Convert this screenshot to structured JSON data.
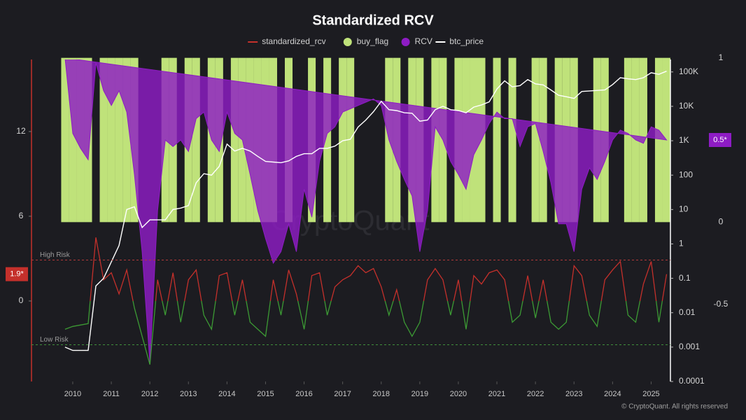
{
  "chart_data": {
    "type": "combo",
    "title": "Standardized RCV",
    "watermark": "CryptoQuant",
    "footer": "© CryptoQuant. All rights reserved",
    "x": [
      2009.8,
      2010,
      2010.2,
      2010.4,
      2010.6,
      2010.8,
      2011,
      2011.2,
      2011.4,
      2011.6,
      2011.8,
      2012,
      2012.2,
      2012.4,
      2012.6,
      2012.8,
      2013,
      2013.2,
      2013.4,
      2013.6,
      2013.8,
      2014,
      2014.2,
      2014.4,
      2014.6,
      2014.8,
      2015,
      2015.2,
      2015.4,
      2015.6,
      2015.8,
      2016,
      2016.2,
      2016.4,
      2016.6,
      2016.8,
      2017,
      2017.2,
      2017.4,
      2017.6,
      2017.8,
      2018,
      2018.2,
      2018.4,
      2018.6,
      2018.8,
      2019,
      2019.2,
      2019.4,
      2019.6,
      2019.8,
      2020,
      2020.2,
      2020.4,
      2020.6,
      2020.8,
      2021,
      2021.2,
      2021.4,
      2021.6,
      2021.8,
      2022,
      2022.2,
      2022.4,
      2022.6,
      2022.8,
      2023,
      2023.2,
      2023.4,
      2023.6,
      2023.8,
      2024,
      2024.2,
      2024.4,
      2024.6,
      2024.8,
      2025,
      2025.2,
      2025.4
    ],
    "xlim": [
      2008.93,
      2025.5
    ],
    "xticks": [
      2010,
      2011,
      2012,
      2013,
      2014,
      2015,
      2016,
      2017,
      2018,
      2019,
      2020,
      2021,
      2022,
      2023,
      2024,
      2025
    ],
    "ylim": [
      -5.7,
      17.1
    ],
    "yticks": [
      12,
      6,
      0
    ],
    "y2lim": [
      0.0001,
      230000
    ],
    "y2scale": "log",
    "y2ticks": [
      {
        "value": 100000,
        "label": "100K"
      },
      {
        "value": 10000,
        "label": "10K"
      },
      {
        "value": 1000,
        "label": "1K"
      },
      100,
      10,
      1,
      0.1,
      0.01,
      0.001,
      0.0001
    ],
    "y3lim": [
      -0.97,
      0.99
    ],
    "y3ticks": [
      1,
      0,
      -0.5
    ],
    "grid": false,
    "legend_position": "top",
    "reference_lines": [
      {
        "label": "High Risk",
        "value": 2.9,
        "color": "#b23a3a"
      },
      {
        "label": "Low Risk",
        "value": -3.1,
        "color": "#3f8f3a"
      }
    ],
    "series": [
      {
        "name": "standardized_rcv",
        "type": "line",
        "axis": "y",
        "color": "#c4302b",
        "color_below": "#3c9a34",
        "color_threshold": 0,
        "values": [
          -2,
          -1.8,
          -1.7,
          -1.6,
          4.5,
          1.5,
          2.0,
          0.5,
          2.2,
          -0.5,
          -2.5,
          -4.5,
          1.5,
          -1,
          2,
          -1.5,
          1.5,
          2.2,
          -1,
          -2,
          1.8,
          2,
          -1,
          1.5,
          -1.5,
          -2,
          -2.5,
          1.5,
          -1,
          2.2,
          0.5,
          -2,
          1.8,
          2.0,
          -1,
          1,
          1.5,
          1.8,
          2.5,
          2.0,
          2.3,
          1.0,
          -1,
          0.8,
          -1.5,
          -2.5,
          -1.5,
          1.5,
          2.3,
          1.5,
          -1,
          1.5,
          -2,
          1.8,
          1.2,
          2.0,
          2.2,
          1.5,
          -1.5,
          -1,
          1.8,
          -1.2,
          1.5,
          -1.5,
          -2,
          -1.5,
          2.5,
          1.8,
          -1,
          -1.8,
          1.5,
          2.2,
          2.8,
          -1,
          -1.5,
          1.2,
          2.8,
          -1.5,
          1.9
        ],
        "value_labels": [
          null,
          null,
          null,
          null,
          null,
          null,
          null,
          null,
          null,
          null,
          null,
          null,
          null,
          null,
          null,
          null,
          null,
          null,
          null,
          null,
          null,
          null,
          null,
          null,
          null,
          null,
          null,
          null,
          null,
          null,
          null,
          null,
          null,
          null,
          null,
          null,
          null,
          null,
          null,
          null,
          null,
          null,
          null,
          null,
          null,
          null,
          null,
          null,
          null,
          null,
          null,
          null,
          null,
          null,
          null,
          null,
          null,
          null,
          null,
          null,
          null,
          null,
          null,
          null,
          null,
          null,
          null,
          null,
          null,
          null,
          null,
          null,
          null,
          null,
          null,
          null,
          null,
          null,
          "1.9*"
        ]
      },
      {
        "name": "buy_flag",
        "type": "bar",
        "axis": "y3",
        "color": "#bfe27a",
        "values": [
          1,
          1,
          1,
          1,
          0,
          1,
          1,
          1,
          1,
          1,
          0,
          0,
          0,
          1,
          1,
          0,
          1,
          1,
          0,
          1,
          1,
          0,
          1,
          1,
          1,
          1,
          1,
          1,
          0,
          1,
          0,
          0,
          1,
          0,
          1,
          0,
          1,
          1,
          0,
          0,
          0,
          0,
          1,
          1,
          0,
          1,
          1,
          0,
          1,
          1,
          0,
          1,
          1,
          1,
          1,
          0,
          1,
          0,
          1,
          0,
          0,
          1,
          1,
          0,
          1,
          1,
          1,
          0,
          0,
          1,
          1,
          0,
          0,
          1,
          1,
          1,
          0,
          1,
          1
        ]
      },
      {
        "name": "RCV",
        "type": "area",
        "axis": "y3",
        "color": "#8e1cc4",
        "values": [
          1,
          0.54,
          0.45,
          0.38,
          0.97,
          0.8,
          0.71,
          0.8,
          0.67,
          0.29,
          -0.18,
          -0.86,
          0.07,
          0.5,
          0.46,
          0.5,
          0.43,
          0.63,
          0.67,
          0.5,
          0.43,
          0.67,
          0.54,
          0.5,
          0.29,
          0.07,
          -0.1,
          -0.25,
          -0.18,
          -0.01,
          -0.18,
          0.2,
          0.03,
          0.37,
          0.54,
          0.58,
          0.67,
          0.69,
          0.71,
          0.73,
          0.75,
          0.71,
          0.5,
          0.37,
          0.26,
          0.16,
          -0.18,
          0.07,
          0.58,
          0.5,
          0.37,
          0.29,
          0.2,
          0.41,
          0.5,
          0.6,
          0.67,
          0.63,
          0.63,
          0.46,
          0.58,
          0.6,
          0.43,
          0.24,
          -0.01,
          -0.01,
          -0.18,
          0.2,
          0.33,
          0.26,
          0.37,
          0.5,
          0.56,
          0.54,
          0.5,
          0.48,
          0.58,
          0.56,
          0.5
        ],
        "value_labels": [
          null,
          null,
          null,
          null,
          null,
          null,
          null,
          null,
          null,
          null,
          null,
          null,
          null,
          null,
          null,
          null,
          null,
          null,
          null,
          null,
          null,
          null,
          null,
          null,
          null,
          null,
          null,
          null,
          null,
          null,
          null,
          null,
          null,
          null,
          null,
          null,
          null,
          null,
          null,
          null,
          null,
          null,
          null,
          null,
          null,
          null,
          null,
          null,
          null,
          null,
          null,
          null,
          null,
          null,
          null,
          null,
          null,
          null,
          null,
          null,
          null,
          null,
          null,
          null,
          null,
          null,
          null,
          null,
          null,
          null,
          null,
          null,
          null,
          null,
          null,
          null,
          null,
          null,
          "0.5*"
        ]
      },
      {
        "name": "btc_price",
        "type": "line",
        "axis": "y2",
        "color": "#ffffff",
        "values": [
          0.001,
          0.0008,
          0.0008,
          0.0008,
          0.06,
          0.1,
          0.3,
          0.9,
          10,
          12,
          3,
          5,
          5,
          5,
          10,
          11,
          13,
          60,
          110,
          100,
          180,
          800,
          500,
          600,
          500,
          350,
          250,
          240,
          230,
          260,
          350,
          420,
          420,
          600,
          600,
          700,
          1000,
          1100,
          2500,
          4000,
          7000,
          14000,
          8000,
          7500,
          6500,
          6300,
          3700,
          4000,
          8000,
          10000,
          8000,
          7500,
          6500,
          9500,
          11000,
          13500,
          32000,
          55000,
          37000,
          40000,
          60000,
          45000,
          42000,
          30000,
          21000,
          19000,
          17000,
          27000,
          28000,
          29000,
          30000,
          43000,
          68000,
          63000,
          60000,
          68000,
          95000,
          85000,
          105000
        ]
      }
    ]
  }
}
